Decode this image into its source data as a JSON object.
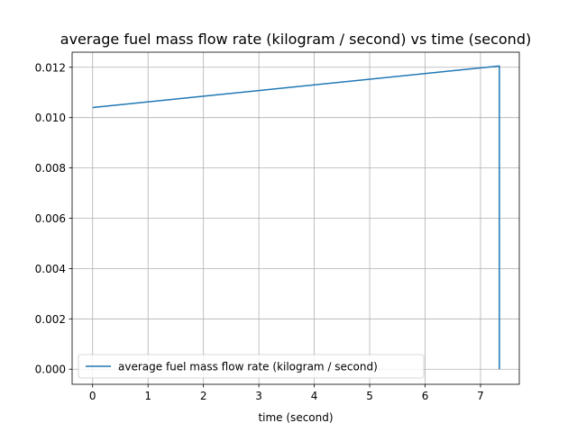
{
  "chart_data": {
    "type": "line",
    "title": "average fuel mass flow rate (kilogram / second) vs time (second)",
    "xlabel": "time (second)",
    "ylabel": "",
    "xlim": [
      -0.37,
      7.7
    ],
    "ylim": [
      -0.0006,
      0.0126
    ],
    "xticks": [
      0,
      1,
      2,
      3,
      4,
      5,
      6,
      7
    ],
    "yticks": [
      0.0,
      0.002,
      0.004,
      0.006,
      0.008,
      0.01,
      0.012
    ],
    "ytick_labels": [
      "0.000",
      "0.002",
      "0.004",
      "0.006",
      "0.008",
      "0.010",
      "0.012"
    ],
    "grid": true,
    "legend_position": "lower-left",
    "series": [
      {
        "name": "average fuel mass flow rate (kilogram / second)",
        "color": "#1f77b4",
        "x": [
          0,
          7.33,
          7.34,
          7.34
        ],
        "y": [
          0.0104,
          0.01205,
          0.01205,
          0.0
        ]
      }
    ]
  }
}
